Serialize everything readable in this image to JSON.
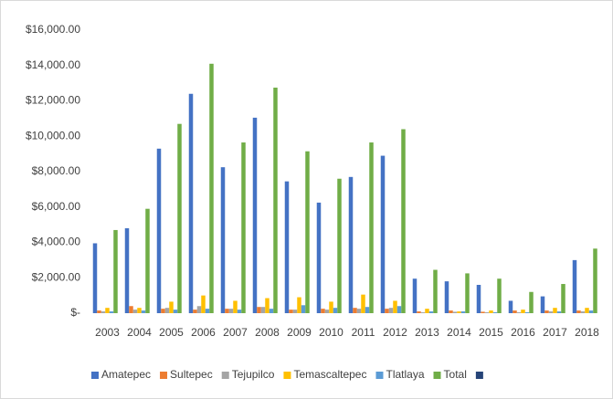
{
  "chart_data": {
    "type": "bar",
    "categories": [
      "2003",
      "2004",
      "2005",
      "2006",
      "2007",
      "2008",
      "2009",
      "2010",
      "2011",
      "2012",
      "2013",
      "2014",
      "2015",
      "2016",
      "2017",
      "2018"
    ],
    "series": [
      {
        "name": "Amatepec",
        "color": "#4472c4",
        "values": [
          3950,
          4800,
          9300,
          12400,
          8250,
          11050,
          7450,
          6250,
          7700,
          8900,
          1950,
          1800,
          1600,
          700,
          950,
          3000
        ]
      },
      {
        "name": "Sultepec",
        "color": "#ed7d31",
        "values": [
          150,
          400,
          250,
          200,
          250,
          350,
          200,
          250,
          300,
          250,
          100,
          150,
          80,
          150,
          150,
          150
        ]
      },
      {
        "name": "Tejupilco",
        "color": "#a5a5a5",
        "values": [
          100,
          200,
          300,
          400,
          250,
          350,
          200,
          200,
          250,
          300,
          50,
          80,
          50,
          50,
          100,
          100
        ]
      },
      {
        "name": "Temascaltepec",
        "color": "#ffc000",
        "values": [
          300,
          300,
          650,
          1000,
          700,
          850,
          900,
          650,
          1050,
          700,
          250,
          100,
          150,
          200,
          300,
          300
        ]
      },
      {
        "name": "Tlatlaya",
        "color": "#5b9bd5",
        "values": [
          100,
          150,
          200,
          250,
          200,
          250,
          450,
          300,
          350,
          400,
          100,
          100,
          50,
          50,
          100,
          150
        ]
      },
      {
        "name": "Total",
        "color": "#70ad47",
        "values": [
          4700,
          5900,
          10700,
          14100,
          9650,
          12750,
          9150,
          7600,
          9650,
          10400,
          2450,
          2250,
          1950,
          1200,
          1650,
          3650
        ]
      },
      {
        "color": "#264478",
        "values": [
          null,
          null,
          null,
          null,
          null,
          null,
          null,
          null,
          null,
          null,
          null,
          null,
          null,
          null,
          null,
          null
        ]
      }
    ],
    "ylim": [
      0,
      16000
    ],
    "yticks": [
      {
        "value": 0,
        "label": "$-"
      },
      {
        "value": 2000,
        "label": "$2,000.00"
      },
      {
        "value": 4000,
        "label": "$4,000.00"
      },
      {
        "value": 6000,
        "label": "$6,000.00"
      },
      {
        "value": 8000,
        "label": "$8,000.00"
      },
      {
        "value": 10000,
        "label": "$10,000.00"
      },
      {
        "value": 12000,
        "label": "$12,000.00"
      },
      {
        "value": 14000,
        "label": "$14,000.00"
      },
      {
        "value": 16000,
        "label": "$16,000.00"
      }
    ],
    "grid": false,
    "legend": "bottom"
  }
}
